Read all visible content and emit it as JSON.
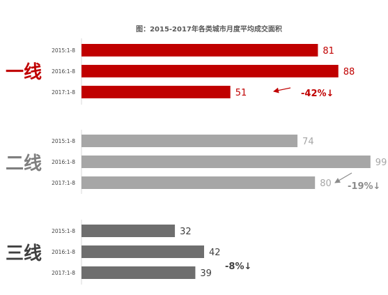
{
  "chart_data": {
    "type": "bar",
    "orientation": "horizontal",
    "title": "图：2015-2017年各类城市月度平均成交面积",
    "xlabel": "",
    "ylabel": "",
    "xlim": [
      0,
      100
    ],
    "grid": false,
    "legend": "none",
    "groups": [
      {
        "label": "一线",
        "color": "#c00000",
        "label_color": "#c00000",
        "categories": [
          "2015:1-8",
          "2016:1-8",
          "2017:1-8"
        ],
        "values": [
          81,
          88,
          51
        ],
        "change": "-42%↓",
        "change_color": "#c00000"
      },
      {
        "label": "二线",
        "color": "#a6a6a6",
        "label_color": "#7f7f7f",
        "categories": [
          "2015:1-8",
          "2016:1-8",
          "2017:1-8"
        ],
        "values": [
          74,
          99,
          80
        ],
        "change": "-19%↓",
        "change_color": "#8c8c8c"
      },
      {
        "label": "三线",
        "color": "#6e6e6e",
        "label_color": "#404040",
        "categories": [
          "2015:1-8",
          "2016:1-8",
          "2017:1-8"
        ],
        "values": [
          32,
          42,
          39
        ],
        "change": "-8%↓",
        "change_color": "#404040"
      }
    ]
  }
}
